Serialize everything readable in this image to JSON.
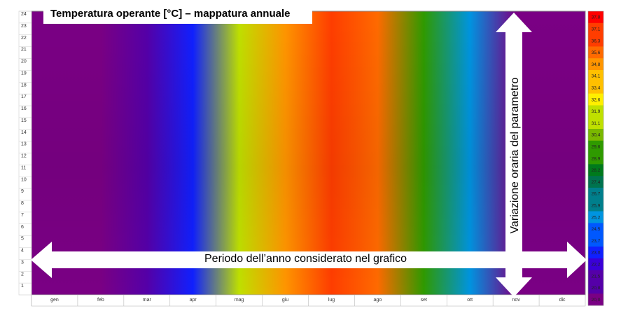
{
  "chart_data": {
    "type": "heatmap",
    "title": "Temperatura operante [°C] – mappatura annuale",
    "x_annotation": "Periodo dell’anno considerato nel grafico",
    "y_annotation": "Variazione oraria del parametro",
    "xlabel": "",
    "ylabel": "",
    "x_categories": [
      "gen",
      "feb",
      "mar",
      "apr",
      "mag",
      "giu",
      "lug",
      "ago",
      "set",
      "ott",
      "nov",
      "dic"
    ],
    "y_ticks": [
      1,
      2,
      3,
      4,
      5,
      6,
      7,
      8,
      9,
      10,
      11,
      12,
      13,
      14,
      15,
      16,
      17,
      18,
      19,
      20,
      21,
      22,
      23,
      24
    ],
    "legend_ticks": [
      "37,8",
      "37,1",
      "36,3",
      "35,6",
      "34,8",
      "34,1",
      "33,4",
      "32,6",
      "31,9",
      "31,1",
      "30,4",
      "29,6",
      "28,9",
      "28,2",
      "27,4",
      "26,7",
      "25,9",
      "25,2",
      "24,5",
      "23,7",
      "23,0",
      "22,2",
      "21,5",
      "20,8",
      "20,0"
    ],
    "colorscale": [
      "#ff0000",
      "#ff3d00",
      "#ff6a00",
      "#ff9500",
      "#ffc000",
      "#ffef00",
      "#bfe000",
      "#7ab800",
      "#2f9a00",
      "#007a1c",
      "#00734e",
      "#007f8c",
      "#0094e0",
      "#0058ff",
      "#1020ff",
      "#3a00d8",
      "#5500a8",
      "#7a0084"
    ],
    "value_range": [
      20.0,
      37.8
    ],
    "monthly_profile": [
      {
        "month": "gen",
        "value": 20.0
      },
      {
        "month": "feb",
        "value": 20.3
      },
      {
        "month": "mar",
        "value": 21.0
      },
      {
        "month": "apr",
        "value": 23.5
      },
      {
        "month": "mag",
        "value": 31.0
      },
      {
        "month": "giu",
        "value": 34.5
      },
      {
        "month": "lug",
        "value": 36.5
      },
      {
        "month": "ago",
        "value": 35.5
      },
      {
        "month": "set",
        "value": 29.0
      },
      {
        "month": "ott",
        "value": 25.0
      },
      {
        "month": "nov",
        "value": 20.3
      },
      {
        "month": "dic",
        "value": 20.0
      }
    ],
    "grid": false,
    "legend_position": "right"
  }
}
